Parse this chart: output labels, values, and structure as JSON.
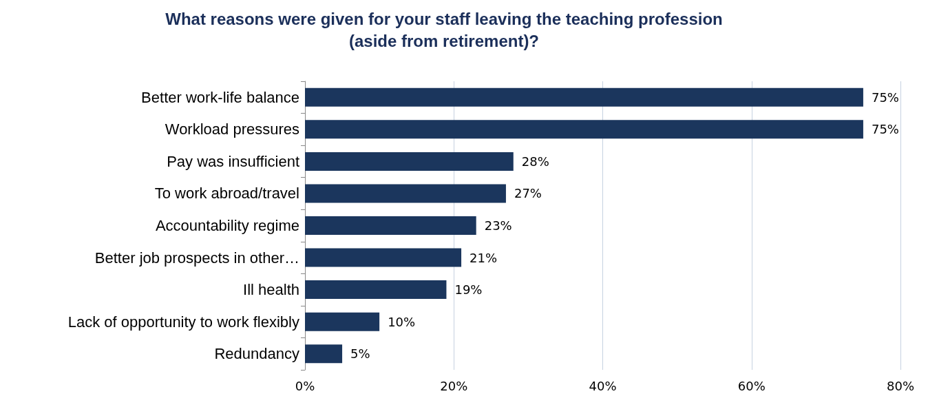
{
  "chart_data": {
    "type": "bar",
    "orientation": "horizontal",
    "title": "What reasons were given for your staff leaving the teaching profession\n(aside from retirement)?",
    "categories": [
      "Better work-life balance",
      "Workload pressures",
      "Pay was insufficient",
      "To work abroad/travel",
      "Accountability regime",
      "Better job prospects in other…",
      "Ill health",
      "Lack of opportunity to work flexibly",
      "Redundancy"
    ],
    "values": [
      75,
      75,
      28,
      27,
      23,
      21,
      19,
      10,
      5
    ],
    "value_labels": [
      "75%",
      "75%",
      "28%",
      "27%",
      "23%",
      "21%",
      "19%",
      "10%",
      "5%"
    ],
    "color": "#1b365d",
    "xlim": [
      0,
      80
    ],
    "xticks": [
      {
        "value": 0,
        "label": "0%"
      },
      {
        "value": 20,
        "label": "20%"
      },
      {
        "value": 40,
        "label": "40%"
      },
      {
        "value": 60,
        "label": "60%"
      },
      {
        "value": 80,
        "label": "80%"
      }
    ],
    "grid": "x"
  }
}
